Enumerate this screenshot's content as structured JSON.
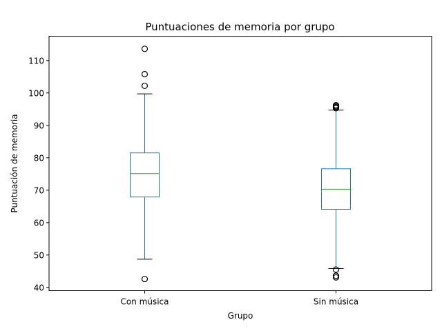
{
  "chart_data": {
    "type": "box",
    "title": "Puntuaciones de memoria por grupo",
    "xlabel": "Grupo",
    "ylabel": "Puntuación de memoria",
    "ylim": [
      39,
      117.5
    ],
    "yticks": [
      40,
      50,
      60,
      70,
      80,
      90,
      100,
      110
    ],
    "grid": false,
    "categories": [
      "Con música",
      "Sin música"
    ],
    "boxes": [
      {
        "category": "Con música",
        "whisker_low": 48.7,
        "q1": 67.9,
        "median": 75.1,
        "q3": 81.5,
        "whisker_high": 99.7,
        "outliers": [
          113.6,
          105.8,
          102.2,
          42.6
        ]
      },
      {
        "category": "Sin música",
        "whisker_low": 45.8,
        "q1": 64.1,
        "median": 70.3,
        "q3": 76.6,
        "whisker_high": 94.7,
        "outliers": [
          96.2,
          95.9,
          95.6,
          95.3,
          45.5,
          43.6,
          43.1
        ]
      }
    ],
    "colors": {
      "box": "#1f77b4",
      "median": "#2ca02c",
      "cap": "#000000",
      "flier": "#000000"
    }
  }
}
